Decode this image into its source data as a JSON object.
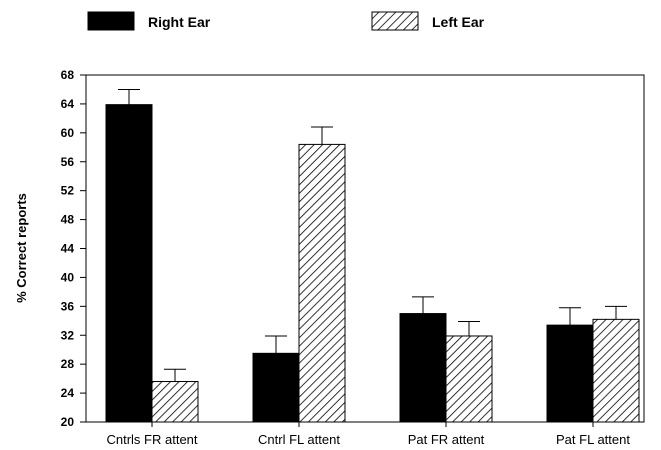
{
  "chart_data": {
    "type": "bar",
    "ylabel": "% Correct reports",
    "xlabel": "",
    "ylim": [
      20,
      68
    ],
    "yticks": [
      20,
      24,
      28,
      32,
      36,
      40,
      44,
      48,
      52,
      56,
      60,
      64,
      68
    ],
    "categories": [
      "Cntrls FR attent",
      "Cntrl FL attent",
      "Pat FR attent",
      "Pat FL attent"
    ],
    "series": [
      {
        "name": "Right Ear",
        "color": "#000000",
        "fill": "solid",
        "values": [
          63.9,
          29.5,
          35.0,
          33.4
        ],
        "errors": [
          2.1,
          2.4,
          2.3,
          2.4
        ]
      },
      {
        "name": "Left Ear",
        "color": "#ffffff",
        "fill": "diagonal-hatch",
        "values": [
          25.6,
          58.4,
          31.9,
          34.2
        ],
        "errors": [
          1.7,
          2.4,
          2.0,
          1.8
        ]
      }
    ],
    "legend_position": "top",
    "grid": false
  }
}
